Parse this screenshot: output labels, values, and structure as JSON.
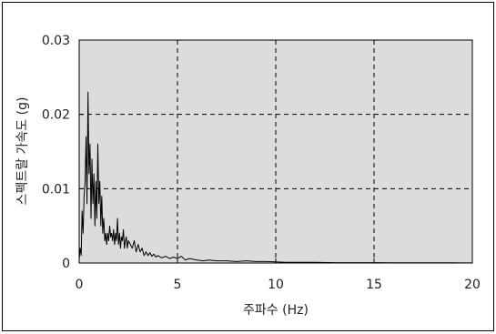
{
  "chart_data": {
    "type": "line",
    "title": "",
    "xlabel": "주파수 (Hz)",
    "ylabel": "스펙트랄 가속도 (g)",
    "xlim": [
      0,
      20
    ],
    "ylim": [
      0,
      0.03
    ],
    "xticks": [
      "0",
      "5",
      "10",
      "15",
      "20"
    ],
    "yticks": [
      "0",
      "0.01",
      "0.02",
      "0.03"
    ],
    "grid": "dashed, x at 5/10/15/20, y at 0.01/0.02",
    "plot_background": "#dcdcdc",
    "line_color": "#000000",
    "series": [
      {
        "x": [
          0.0,
          0.05,
          0.1,
          0.15,
          0.2,
          0.25,
          0.3,
          0.35,
          0.4,
          0.45,
          0.5,
          0.55,
          0.6,
          0.65,
          0.7,
          0.75,
          0.8,
          0.85,
          0.9,
          0.95,
          1.0,
          1.05,
          1.1,
          1.15,
          1.2,
          1.25,
          1.3,
          1.35,
          1.4,
          1.45,
          1.5,
          1.55,
          1.6,
          1.65,
          1.7,
          1.75,
          1.8,
          1.85,
          1.9,
          1.95,
          2.0,
          2.05,
          2.1,
          2.15,
          2.2,
          2.25,
          2.3,
          2.35,
          2.4,
          2.45,
          2.5,
          2.6,
          2.7,
          2.8,
          2.9,
          3.0,
          3.1,
          3.2,
          3.3,
          3.4,
          3.5,
          3.6,
          3.7,
          3.8,
          3.9,
          4.0,
          4.2,
          4.4,
          4.6,
          4.8,
          5.0,
          5.2,
          5.4,
          5.6,
          5.8,
          6.0,
          6.3,
          6.6,
          7.0,
          7.5,
          8.0,
          8.5,
          9.0,
          9.5,
          10.0,
          10.5,
          11.0,
          12.0,
          13.0,
          14.0,
          15.0,
          16.0,
          17.0,
          18.0,
          19.0,
          20.0
        ],
        "y": [
          0.0005,
          0.002,
          0.001,
          0.007,
          0.004,
          0.009,
          0.011,
          0.017,
          0.008,
          0.023,
          0.012,
          0.016,
          0.006,
          0.014,
          0.008,
          0.012,
          0.005,
          0.011,
          0.006,
          0.016,
          0.008,
          0.011,
          0.005,
          0.009,
          0.004,
          0.006,
          0.003,
          0.004,
          0.0025,
          0.004,
          0.003,
          0.005,
          0.0035,
          0.004,
          0.003,
          0.0045,
          0.0025,
          0.004,
          0.003,
          0.006,
          0.0025,
          0.004,
          0.002,
          0.0035,
          0.003,
          0.0045,
          0.002,
          0.003,
          0.0035,
          0.002,
          0.003,
          0.0025,
          0.002,
          0.003,
          0.0015,
          0.0025,
          0.0015,
          0.002,
          0.001,
          0.0015,
          0.001,
          0.0014,
          0.0009,
          0.0012,
          0.0008,
          0.001,
          0.0007,
          0.0009,
          0.0006,
          0.0008,
          0.0006,
          0.0009,
          0.0004,
          0.0006,
          0.0005,
          0.0004,
          0.0003,
          0.0004,
          0.0003,
          0.0003,
          0.0002,
          0.0003,
          0.0002,
          0.0002,
          0.00015,
          0.0001,
          0.0001,
          0.0001,
          5e-05,
          5e-05,
          5e-05,
          3e-05,
          3e-05,
          2e-05,
          2e-05,
          1e-05
        ]
      }
    ]
  }
}
